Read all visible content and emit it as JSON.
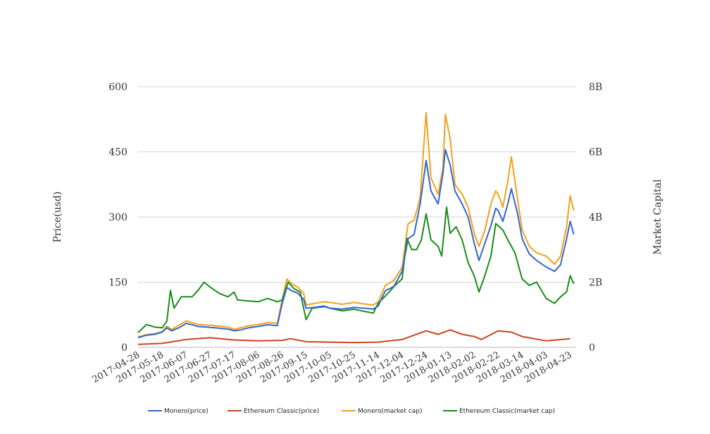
{
  "chart_data": {
    "type": "line",
    "title": "",
    "ylabel_left": "Price(usd)",
    "ylabel_right": "Market Capital",
    "ylim_left": [
      0,
      600
    ],
    "ylim_right": [
      0,
      8000000000
    ],
    "yticks_left": [
      "0",
      "150",
      "300",
      "450",
      "600"
    ],
    "yticks_right": [
      "0",
      "2B",
      "4B",
      "6B",
      "8B"
    ],
    "xlim": [
      "2017-04-28",
      "2018-04-28"
    ],
    "xticks": [
      "2017-04-28",
      "2017-05-18",
      "2017-06-07",
      "2017-06-27",
      "2017-07-17",
      "2017-08-06",
      "2017-08-26",
      "2017-09-15",
      "2017-10-05",
      "2017-10-25",
      "2017-11-14",
      "2017-12-04",
      "2017-12-24",
      "2018-01-13",
      "2018-02-02",
      "2018-02-22",
      "2018-03-14",
      "2018-04-03",
      "2018-04-23"
    ],
    "grid": "horizontal",
    "legend_position": "bottom",
    "series": [
      {
        "name": "Monero(price)",
        "axis": "left",
        "color": "#3366cc",
        "points": [
          [
            "2017-04-28",
            22
          ],
          [
            "2017-05-05",
            28
          ],
          [
            "2017-05-12",
            30
          ],
          [
            "2017-05-18",
            35
          ],
          [
            "2017-05-22",
            45
          ],
          [
            "2017-05-26",
            38
          ],
          [
            "2017-06-01",
            45
          ],
          [
            "2017-06-07",
            55
          ],
          [
            "2017-06-12",
            52
          ],
          [
            "2017-06-17",
            48
          ],
          [
            "2017-06-27",
            46
          ],
          [
            "2017-07-05",
            44
          ],
          [
            "2017-07-12",
            42
          ],
          [
            "2017-07-17",
            38
          ],
          [
            "2017-07-22",
            40
          ],
          [
            "2017-07-29",
            45
          ],
          [
            "2017-08-06",
            48
          ],
          [
            "2017-08-14",
            52
          ],
          [
            "2017-08-22",
            50
          ],
          [
            "2017-08-26",
            100
          ],
          [
            "2017-08-30",
            138
          ],
          [
            "2017-09-03",
            130
          ],
          [
            "2017-09-08",
            125
          ],
          [
            "2017-09-13",
            110
          ],
          [
            "2017-09-15",
            90
          ],
          [
            "2017-09-22",
            92
          ],
          [
            "2017-09-30",
            95
          ],
          [
            "2017-10-05",
            90
          ],
          [
            "2017-10-15",
            88
          ],
          [
            "2017-10-25",
            92
          ],
          [
            "2017-11-03",
            90
          ],
          [
            "2017-11-10",
            88
          ],
          [
            "2017-11-14",
            95
          ],
          [
            "2017-11-20",
            130
          ],
          [
            "2017-11-27",
            140
          ],
          [
            "2017-12-04",
            175
          ],
          [
            "2017-12-09",
            250
          ],
          [
            "2017-12-14",
            260
          ],
          [
            "2017-12-19",
            330
          ],
          [
            "2017-12-24",
            430
          ],
          [
            "2017-12-28",
            360
          ],
          [
            "2018-01-03",
            330
          ],
          [
            "2018-01-07",
            400
          ],
          [
            "2018-01-09",
            455
          ],
          [
            "2018-01-13",
            420
          ],
          [
            "2018-01-17",
            360
          ],
          [
            "2018-01-23",
            330
          ],
          [
            "2018-01-28",
            300
          ],
          [
            "2018-02-02",
            240
          ],
          [
            "2018-02-06",
            200
          ],
          [
            "2018-02-11",
            240
          ],
          [
            "2018-02-16",
            280
          ],
          [
            "2018-02-20",
            320
          ],
          [
            "2018-02-22",
            315
          ],
          [
            "2018-02-26",
            290
          ],
          [
            "2018-03-02",
            330
          ],
          [
            "2018-03-05",
            365
          ],
          [
            "2018-03-10",
            310
          ],
          [
            "2018-03-14",
            250
          ],
          [
            "2018-03-20",
            215
          ],
          [
            "2018-03-26",
            200
          ],
          [
            "2018-04-03",
            185
          ],
          [
            "2018-04-10",
            175
          ],
          [
            "2018-04-15",
            190
          ],
          [
            "2018-04-20",
            250
          ],
          [
            "2018-04-23",
            290
          ],
          [
            "2018-04-26",
            260
          ]
        ]
      },
      {
        "name": "Ethereum Classic(price)",
        "axis": "left",
        "color": "#cc4422",
        "points": [
          [
            "2017-04-28",
            7
          ],
          [
            "2017-05-18",
            9
          ],
          [
            "2017-06-07",
            18
          ],
          [
            "2017-06-27",
            22
          ],
          [
            "2017-07-17",
            17
          ],
          [
            "2017-08-06",
            15
          ],
          [
            "2017-08-26",
            16
          ],
          [
            "2017-09-02",
            20
          ],
          [
            "2017-09-15",
            13
          ],
          [
            "2017-10-05",
            12
          ],
          [
            "2017-10-25",
            11
          ],
          [
            "2017-11-14",
            12
          ],
          [
            "2017-12-04",
            18
          ],
          [
            "2017-12-14",
            28
          ],
          [
            "2017-12-24",
            38
          ],
          [
            "2018-01-03",
            30
          ],
          [
            "2018-01-13",
            40
          ],
          [
            "2018-01-23",
            30
          ],
          [
            "2018-02-02",
            25
          ],
          [
            "2018-02-08",
            18
          ],
          [
            "2018-02-22",
            38
          ],
          [
            "2018-03-05",
            35
          ],
          [
            "2018-03-14",
            25
          ],
          [
            "2018-04-03",
            15
          ],
          [
            "2018-04-23",
            20
          ]
        ]
      },
      {
        "name": "Monero(market cap)",
        "axis": "right",
        "color": "#f2a11c",
        "points": [
          [
            "2017-04-28",
            320000000
          ],
          [
            "2017-05-05",
            390000000
          ],
          [
            "2017-05-12",
            420000000
          ],
          [
            "2017-05-18",
            480000000
          ],
          [
            "2017-05-22",
            650000000
          ],
          [
            "2017-05-26",
            550000000
          ],
          [
            "2017-06-01",
            680000000
          ],
          [
            "2017-06-07",
            810000000
          ],
          [
            "2017-06-12",
            760000000
          ],
          [
            "2017-06-17",
            700000000
          ],
          [
            "2017-06-27",
            680000000
          ],
          [
            "2017-07-05",
            650000000
          ],
          [
            "2017-07-12",
            620000000
          ],
          [
            "2017-07-17",
            550000000
          ],
          [
            "2017-07-22",
            600000000
          ],
          [
            "2017-07-29",
            660000000
          ],
          [
            "2017-08-06",
            700000000
          ],
          [
            "2017-08-14",
            760000000
          ],
          [
            "2017-08-22",
            740000000
          ],
          [
            "2017-08-26",
            1450000000
          ],
          [
            "2017-08-30",
            2100000000
          ],
          [
            "2017-09-03",
            1950000000
          ],
          [
            "2017-09-08",
            1850000000
          ],
          [
            "2017-09-13",
            1650000000
          ],
          [
            "2017-09-15",
            1300000000
          ],
          [
            "2017-09-22",
            1350000000
          ],
          [
            "2017-09-30",
            1400000000
          ],
          [
            "2017-10-05",
            1380000000
          ],
          [
            "2017-10-15",
            1320000000
          ],
          [
            "2017-10-25",
            1380000000
          ],
          [
            "2017-11-03",
            1330000000
          ],
          [
            "2017-11-10",
            1300000000
          ],
          [
            "2017-11-14",
            1400000000
          ],
          [
            "2017-11-20",
            1900000000
          ],
          [
            "2017-11-27",
            2050000000
          ],
          [
            "2017-12-04",
            2450000000
          ],
          [
            "2017-12-09",
            3800000000
          ],
          [
            "2017-12-14",
            3900000000
          ],
          [
            "2017-12-19",
            4600000000
          ],
          [
            "2017-12-24",
            7200000000
          ],
          [
            "2017-12-28",
            5200000000
          ],
          [
            "2018-01-03",
            4700000000
          ],
          [
            "2018-01-07",
            5500000000
          ],
          [
            "2018-01-09",
            7150000000
          ],
          [
            "2018-01-13",
            6400000000
          ],
          [
            "2018-01-17",
            5000000000
          ],
          [
            "2018-01-23",
            4700000000
          ],
          [
            "2018-01-28",
            4300000000
          ],
          [
            "2018-02-02",
            3500000000
          ],
          [
            "2018-02-06",
            3100000000
          ],
          [
            "2018-02-11",
            3600000000
          ],
          [
            "2018-02-16",
            4400000000
          ],
          [
            "2018-02-20",
            4800000000
          ],
          [
            "2018-02-22",
            4700000000
          ],
          [
            "2018-02-26",
            4300000000
          ],
          [
            "2018-03-02",
            5100000000
          ],
          [
            "2018-03-05",
            5850000000
          ],
          [
            "2018-03-10",
            4600000000
          ],
          [
            "2018-03-14",
            3600000000
          ],
          [
            "2018-03-20",
            3100000000
          ],
          [
            "2018-03-26",
            2900000000
          ],
          [
            "2018-04-03",
            2800000000
          ],
          [
            "2018-04-10",
            2550000000
          ],
          [
            "2018-04-15",
            2800000000
          ],
          [
            "2018-04-20",
            3700000000
          ],
          [
            "2018-04-23",
            4650000000
          ],
          [
            "2018-04-26",
            4200000000
          ]
        ]
      },
      {
        "name": "Ethereum Classic(market cap)",
        "axis": "right",
        "color": "#1a8c1a",
        "points": [
          [
            "2017-04-28",
            450000000
          ],
          [
            "2017-05-05",
            700000000
          ],
          [
            "2017-05-12",
            620000000
          ],
          [
            "2017-05-18",
            600000000
          ],
          [
            "2017-05-22",
            800000000
          ],
          [
            "2017-05-25",
            1750000000
          ],
          [
            "2017-05-28",
            1200000000
          ],
          [
            "2017-06-03",
            1550000000
          ],
          [
            "2017-06-12",
            1550000000
          ],
          [
            "2017-06-17",
            1750000000
          ],
          [
            "2017-06-22",
            2000000000
          ],
          [
            "2017-06-27",
            1850000000
          ],
          [
            "2017-07-05",
            1650000000
          ],
          [
            "2017-07-12",
            1550000000
          ],
          [
            "2017-07-17",
            1700000000
          ],
          [
            "2017-07-20",
            1450000000
          ],
          [
            "2017-08-06",
            1400000000
          ],
          [
            "2017-08-14",
            1500000000
          ],
          [
            "2017-08-22",
            1400000000
          ],
          [
            "2017-08-26",
            1450000000
          ],
          [
            "2017-08-31",
            2000000000
          ],
          [
            "2017-09-05",
            1800000000
          ],
          [
            "2017-09-10",
            1700000000
          ],
          [
            "2017-09-15",
            850000000
          ],
          [
            "2017-09-20",
            1200000000
          ],
          [
            "2017-09-30",
            1250000000
          ],
          [
            "2017-10-05",
            1200000000
          ],
          [
            "2017-10-15",
            1120000000
          ],
          [
            "2017-10-25",
            1170000000
          ],
          [
            "2017-11-03",
            1100000000
          ],
          [
            "2017-11-10",
            1050000000
          ],
          [
            "2017-11-14",
            1350000000
          ],
          [
            "2017-11-22",
            1650000000
          ],
          [
            "2017-11-28",
            1900000000
          ],
          [
            "2017-12-04",
            2100000000
          ],
          [
            "2017-12-08",
            3350000000
          ],
          [
            "2017-12-12",
            3000000000
          ],
          [
            "2017-12-16",
            3000000000
          ],
          [
            "2017-12-20",
            3300000000
          ],
          [
            "2017-12-24",
            4100000000
          ],
          [
            "2017-12-28",
            3300000000
          ],
          [
            "2018-01-03",
            3100000000
          ],
          [
            "2018-01-06",
            2800000000
          ],
          [
            "2018-01-10",
            4300000000
          ],
          [
            "2018-01-13",
            3500000000
          ],
          [
            "2018-01-18",
            3700000000
          ],
          [
            "2018-01-23",
            3300000000
          ],
          [
            "2018-01-28",
            2600000000
          ],
          [
            "2018-02-02",
            2200000000
          ],
          [
            "2018-02-06",
            1700000000
          ],
          [
            "2018-02-10",
            2100000000
          ],
          [
            "2018-02-16",
            2800000000
          ],
          [
            "2018-02-20",
            3800000000
          ],
          [
            "2018-02-26",
            3600000000
          ],
          [
            "2018-03-02",
            3300000000
          ],
          [
            "2018-03-08",
            2900000000
          ],
          [
            "2018-03-14",
            2100000000
          ],
          [
            "2018-03-20",
            1900000000
          ],
          [
            "2018-03-26",
            2000000000
          ],
          [
            "2018-04-03",
            1500000000
          ],
          [
            "2018-04-10",
            1350000000
          ],
          [
            "2018-04-15",
            1550000000
          ],
          [
            "2018-04-20",
            1700000000
          ],
          [
            "2018-04-23",
            2200000000
          ],
          [
            "2018-04-26",
            1950000000
          ]
        ]
      }
    ]
  }
}
